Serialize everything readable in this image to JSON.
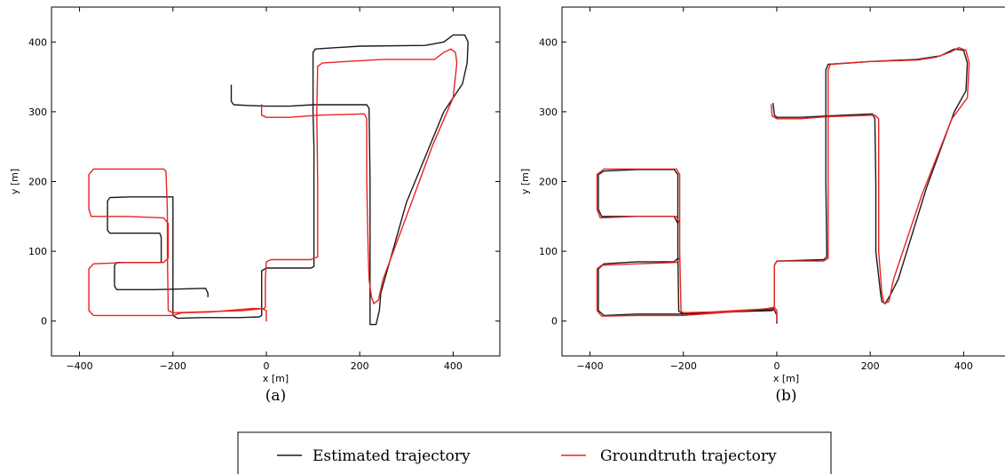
{
  "chart_data": [
    {
      "type": "line",
      "caption": "(a)",
      "xlabel": "x [m]",
      "ylabel": "y [m]",
      "xlim": [
        -460,
        500
      ],
      "ylim": [
        -50,
        450
      ],
      "xticks": [
        -400,
        -200,
        0,
        200,
        400
      ],
      "yticks": [
        0,
        100,
        200,
        300,
        400
      ],
      "xtick_labels": [
        "−400",
        "−200",
        "0",
        "200",
        "400"
      ],
      "ytick_labels": [
        "0",
        "100",
        "200",
        "300",
        "400"
      ],
      "grid": false,
      "series": [
        {
          "name": "Estimated trajectory",
          "color": "#1a1a1a",
          "points": [
            [
              -75,
              338
            ],
            [
              -75,
              315
            ],
            [
              -70,
              310
            ],
            [
              -40,
              309
            ],
            [
              0,
              308
            ],
            [
              50,
              308
            ],
            [
              100,
              310
            ],
            [
              215,
              310
            ],
            [
              220,
              305
            ],
            [
              222,
              200
            ],
            [
              222,
              100
            ],
            [
              222,
              0
            ],
            [
              222,
              -5
            ],
            [
              235,
              -5
            ],
            [
              242,
              15
            ],
            [
              245,
              40
            ],
            [
              300,
              170
            ],
            [
              380,
              300
            ],
            [
              420,
              340
            ],
            [
              430,
              370
            ],
            [
              432,
              400
            ],
            [
              425,
              410
            ],
            [
              400,
              410
            ],
            [
              380,
              400
            ],
            [
              340,
              395
            ],
            [
              200,
              394
            ],
            [
              105,
              390
            ],
            [
              100,
              385
            ],
            [
              100,
              300
            ],
            [
              102,
              250
            ],
            [
              102,
              175
            ],
            [
              102,
              78
            ],
            [
              95,
              76
            ],
            [
              0,
              76
            ],
            [
              -10,
              72
            ],
            [
              -10,
              40
            ],
            [
              -10,
              8
            ],
            [
              -15,
              6
            ],
            [
              -60,
              5
            ],
            [
              -140,
              5
            ],
            [
              -190,
              4
            ],
            [
              -200,
              8
            ],
            [
              -200,
              100
            ],
            [
              -200,
              178
            ],
            [
              -205,
              178
            ],
            [
              -290,
              178
            ],
            [
              -335,
              177
            ],
            [
              -340,
              172
            ],
            [
              -340,
              130
            ],
            [
              -335,
              126
            ],
            [
              -240,
              126
            ],
            [
              -228,
              126
            ],
            [
              -225,
              120
            ],
            [
              -225,
              84
            ],
            [
              -232,
              84
            ],
            [
              -290,
              84
            ],
            [
              -320,
              84
            ],
            [
              -325,
              80
            ],
            [
              -325,
              50
            ],
            [
              -320,
              45
            ],
            [
              -240,
              45
            ],
            [
              -130,
              47
            ],
            [
              -125,
              40
            ],
            [
              -125,
              35
            ]
          ]
        },
        {
          "name": "Groundtruth trajectory",
          "color": "#e8231f",
          "points": [
            [
              -10,
              310
            ],
            [
              -10,
              295
            ],
            [
              0,
              292
            ],
            [
              50,
              292
            ],
            [
              110,
              295
            ],
            [
              210,
              297
            ],
            [
              215,
              290
            ],
            [
              215,
              200
            ],
            [
              218,
              100
            ],
            [
              220,
              60
            ],
            [
              225,
              35
            ],
            [
              230,
              25
            ],
            [
              240,
              30
            ],
            [
              250,
              60
            ],
            [
              300,
              150
            ],
            [
              355,
              250
            ],
            [
              400,
              320
            ],
            [
              408,
              370
            ],
            [
              405,
              385
            ],
            [
              395,
              390
            ],
            [
              380,
              385
            ],
            [
              360,
              375
            ],
            [
              250,
              375
            ],
            [
              120,
              370
            ],
            [
              110,
              365
            ],
            [
              108,
              300
            ],
            [
              110,
              200
            ],
            [
              110,
              92
            ],
            [
              95,
              88
            ],
            [
              10,
              88
            ],
            [
              0,
              85
            ],
            [
              -2,
              60
            ],
            [
              -2,
              20
            ],
            [
              -5,
              18
            ],
            [
              -50,
              15
            ],
            [
              -100,
              14
            ],
            [
              -200,
              12
            ],
            [
              -210,
              15
            ],
            [
              -212,
              100
            ],
            [
              -212,
              160
            ],
            [
              -215,
              215
            ],
            [
              -220,
              218
            ],
            [
              -300,
              218
            ],
            [
              -370,
              218
            ],
            [
              -380,
              210
            ],
            [
              -380,
              160
            ],
            [
              -375,
              150
            ],
            [
              -300,
              150
            ],
            [
              -220,
              148
            ],
            [
              -210,
              140
            ],
            [
              -210,
              90
            ],
            [
              -220,
              84
            ],
            [
              -300,
              84
            ],
            [
              -370,
              82
            ],
            [
              -380,
              75
            ],
            [
              -380,
              15
            ],
            [
              -370,
              8
            ],
            [
              -300,
              8
            ],
            [
              -200,
              8
            ],
            [
              -180,
              12
            ],
            [
              -120,
              13
            ],
            [
              -30,
              18
            ],
            [
              -10,
              18
            ],
            [
              0,
              15
            ],
            [
              0,
              0
            ]
          ]
        }
      ]
    },
    {
      "type": "line",
      "caption": "(b)",
      "xlabel": "x [m]",
      "ylabel": "y [m]",
      "xlim": [
        -460,
        500
      ],
      "ylim": [
        -50,
        450
      ],
      "xticks": [
        -400,
        -200,
        0,
        200,
        400
      ],
      "yticks": [
        0,
        100,
        200,
        300,
        400
      ],
      "xtick_labels": [
        "−400",
        "−200",
        "0",
        "200",
        "400"
      ],
      "ytick_labels": [
        "0",
        "100",
        "200",
        "300",
        "400"
      ],
      "grid": false,
      "series": [
        {
          "name": "Estimated trajectory",
          "color": "#1a1a1a",
          "points": [
            [
              -8,
              312
            ],
            [
              -5,
              295
            ],
            [
              0,
              292
            ],
            [
              50,
              292
            ],
            [
              110,
              294
            ],
            [
              205,
              297
            ],
            [
              210,
              290
            ],
            [
              212,
              200
            ],
            [
              212,
              100
            ],
            [
              222,
              40
            ],
            [
              225,
              28
            ],
            [
              232,
              25
            ],
            [
              245,
              40
            ],
            [
              260,
              60
            ],
            [
              320,
              190
            ],
            [
              380,
              300
            ],
            [
              405,
              330
            ],
            [
              408,
              370
            ],
            [
              400,
              388
            ],
            [
              380,
              390
            ],
            [
              350,
              380
            ],
            [
              300,
              375
            ],
            [
              200,
              372
            ],
            [
              110,
              368
            ],
            [
              105,
              360
            ],
            [
              105,
              300
            ],
            [
              105,
              200
            ],
            [
              107,
              92
            ],
            [
              100,
              88
            ],
            [
              0,
              86
            ],
            [
              -5,
              80
            ],
            [
              -5,
              20
            ],
            [
              -10,
              15
            ],
            [
              -60,
              14
            ],
            [
              -140,
              12
            ],
            [
              -200,
              10
            ],
            [
              -210,
              14
            ],
            [
              -212,
              100
            ],
            [
              -212,
              210
            ],
            [
              -220,
              217
            ],
            [
              -300,
              217
            ],
            [
              -370,
              215
            ],
            [
              -382,
              210
            ],
            [
              -382,
              160
            ],
            [
              -375,
              150
            ],
            [
              -300,
              150
            ],
            [
              -220,
              150
            ],
            [
              -212,
              140
            ],
            [
              -212,
              90
            ],
            [
              -220,
              85
            ],
            [
              -300,
              85
            ],
            [
              -370,
              82
            ],
            [
              -382,
              75
            ],
            [
              -382,
              15
            ],
            [
              -370,
              8
            ],
            [
              -300,
              10
            ],
            [
              -200,
              10
            ],
            [
              -100,
              14
            ],
            [
              -20,
              16
            ],
            [
              -5,
              16
            ],
            [
              0,
              8
            ],
            [
              0,
              -3
            ]
          ]
        },
        {
          "name": "Groundtruth trajectory",
          "color": "#e8231f",
          "points": [
            [
              -12,
              310
            ],
            [
              -10,
              294
            ],
            [
              0,
              290
            ],
            [
              50,
              290
            ],
            [
              110,
              293
            ],
            [
              210,
              295
            ],
            [
              218,
              290
            ],
            [
              218,
              200
            ],
            [
              218,
              100
            ],
            [
              225,
              40
            ],
            [
              230,
              25
            ],
            [
              240,
              28
            ],
            [
              250,
              60
            ],
            [
              310,
              180
            ],
            [
              375,
              290
            ],
            [
              408,
              320
            ],
            [
              412,
              370
            ],
            [
              405,
              388
            ],
            [
              390,
              392
            ],
            [
              370,
              385
            ],
            [
              340,
              378
            ],
            [
              300,
              374
            ],
            [
              200,
              372
            ],
            [
              115,
              368
            ],
            [
              110,
              360
            ],
            [
              110,
              300
            ],
            [
              110,
              200
            ],
            [
              110,
              90
            ],
            [
              100,
              86
            ],
            [
              0,
              86
            ],
            [
              -5,
              80
            ],
            [
              -5,
              20
            ],
            [
              -10,
              18
            ],
            [
              -60,
              16
            ],
            [
              -140,
              13
            ],
            [
              -200,
              12
            ],
            [
              -205,
              14
            ],
            [
              -208,
              100
            ],
            [
              -208,
              210
            ],
            [
              -215,
              218
            ],
            [
              -300,
              218
            ],
            [
              -370,
              218
            ],
            [
              -385,
              210
            ],
            [
              -385,
              160
            ],
            [
              -378,
              148
            ],
            [
              -300,
              150
            ],
            [
              -215,
              150
            ],
            [
              -208,
              140
            ],
            [
              -208,
              90
            ],
            [
              -215,
              84
            ],
            [
              -300,
              82
            ],
            [
              -375,
              80
            ],
            [
              -385,
              75
            ],
            [
              -385,
              15
            ],
            [
              -375,
              7
            ],
            [
              -300,
              8
            ],
            [
              -200,
              8
            ],
            [
              -100,
              13
            ],
            [
              -20,
              18
            ],
            [
              -5,
              20
            ],
            [
              0,
              15
            ],
            [
              0,
              0
            ]
          ]
        }
      ]
    }
  ],
  "legend": [
    {
      "label": "Estimated trajectory",
      "color": "#1a1a1a"
    },
    {
      "label": "Groundtruth trajectory",
      "color": "#e8231f"
    }
  ]
}
